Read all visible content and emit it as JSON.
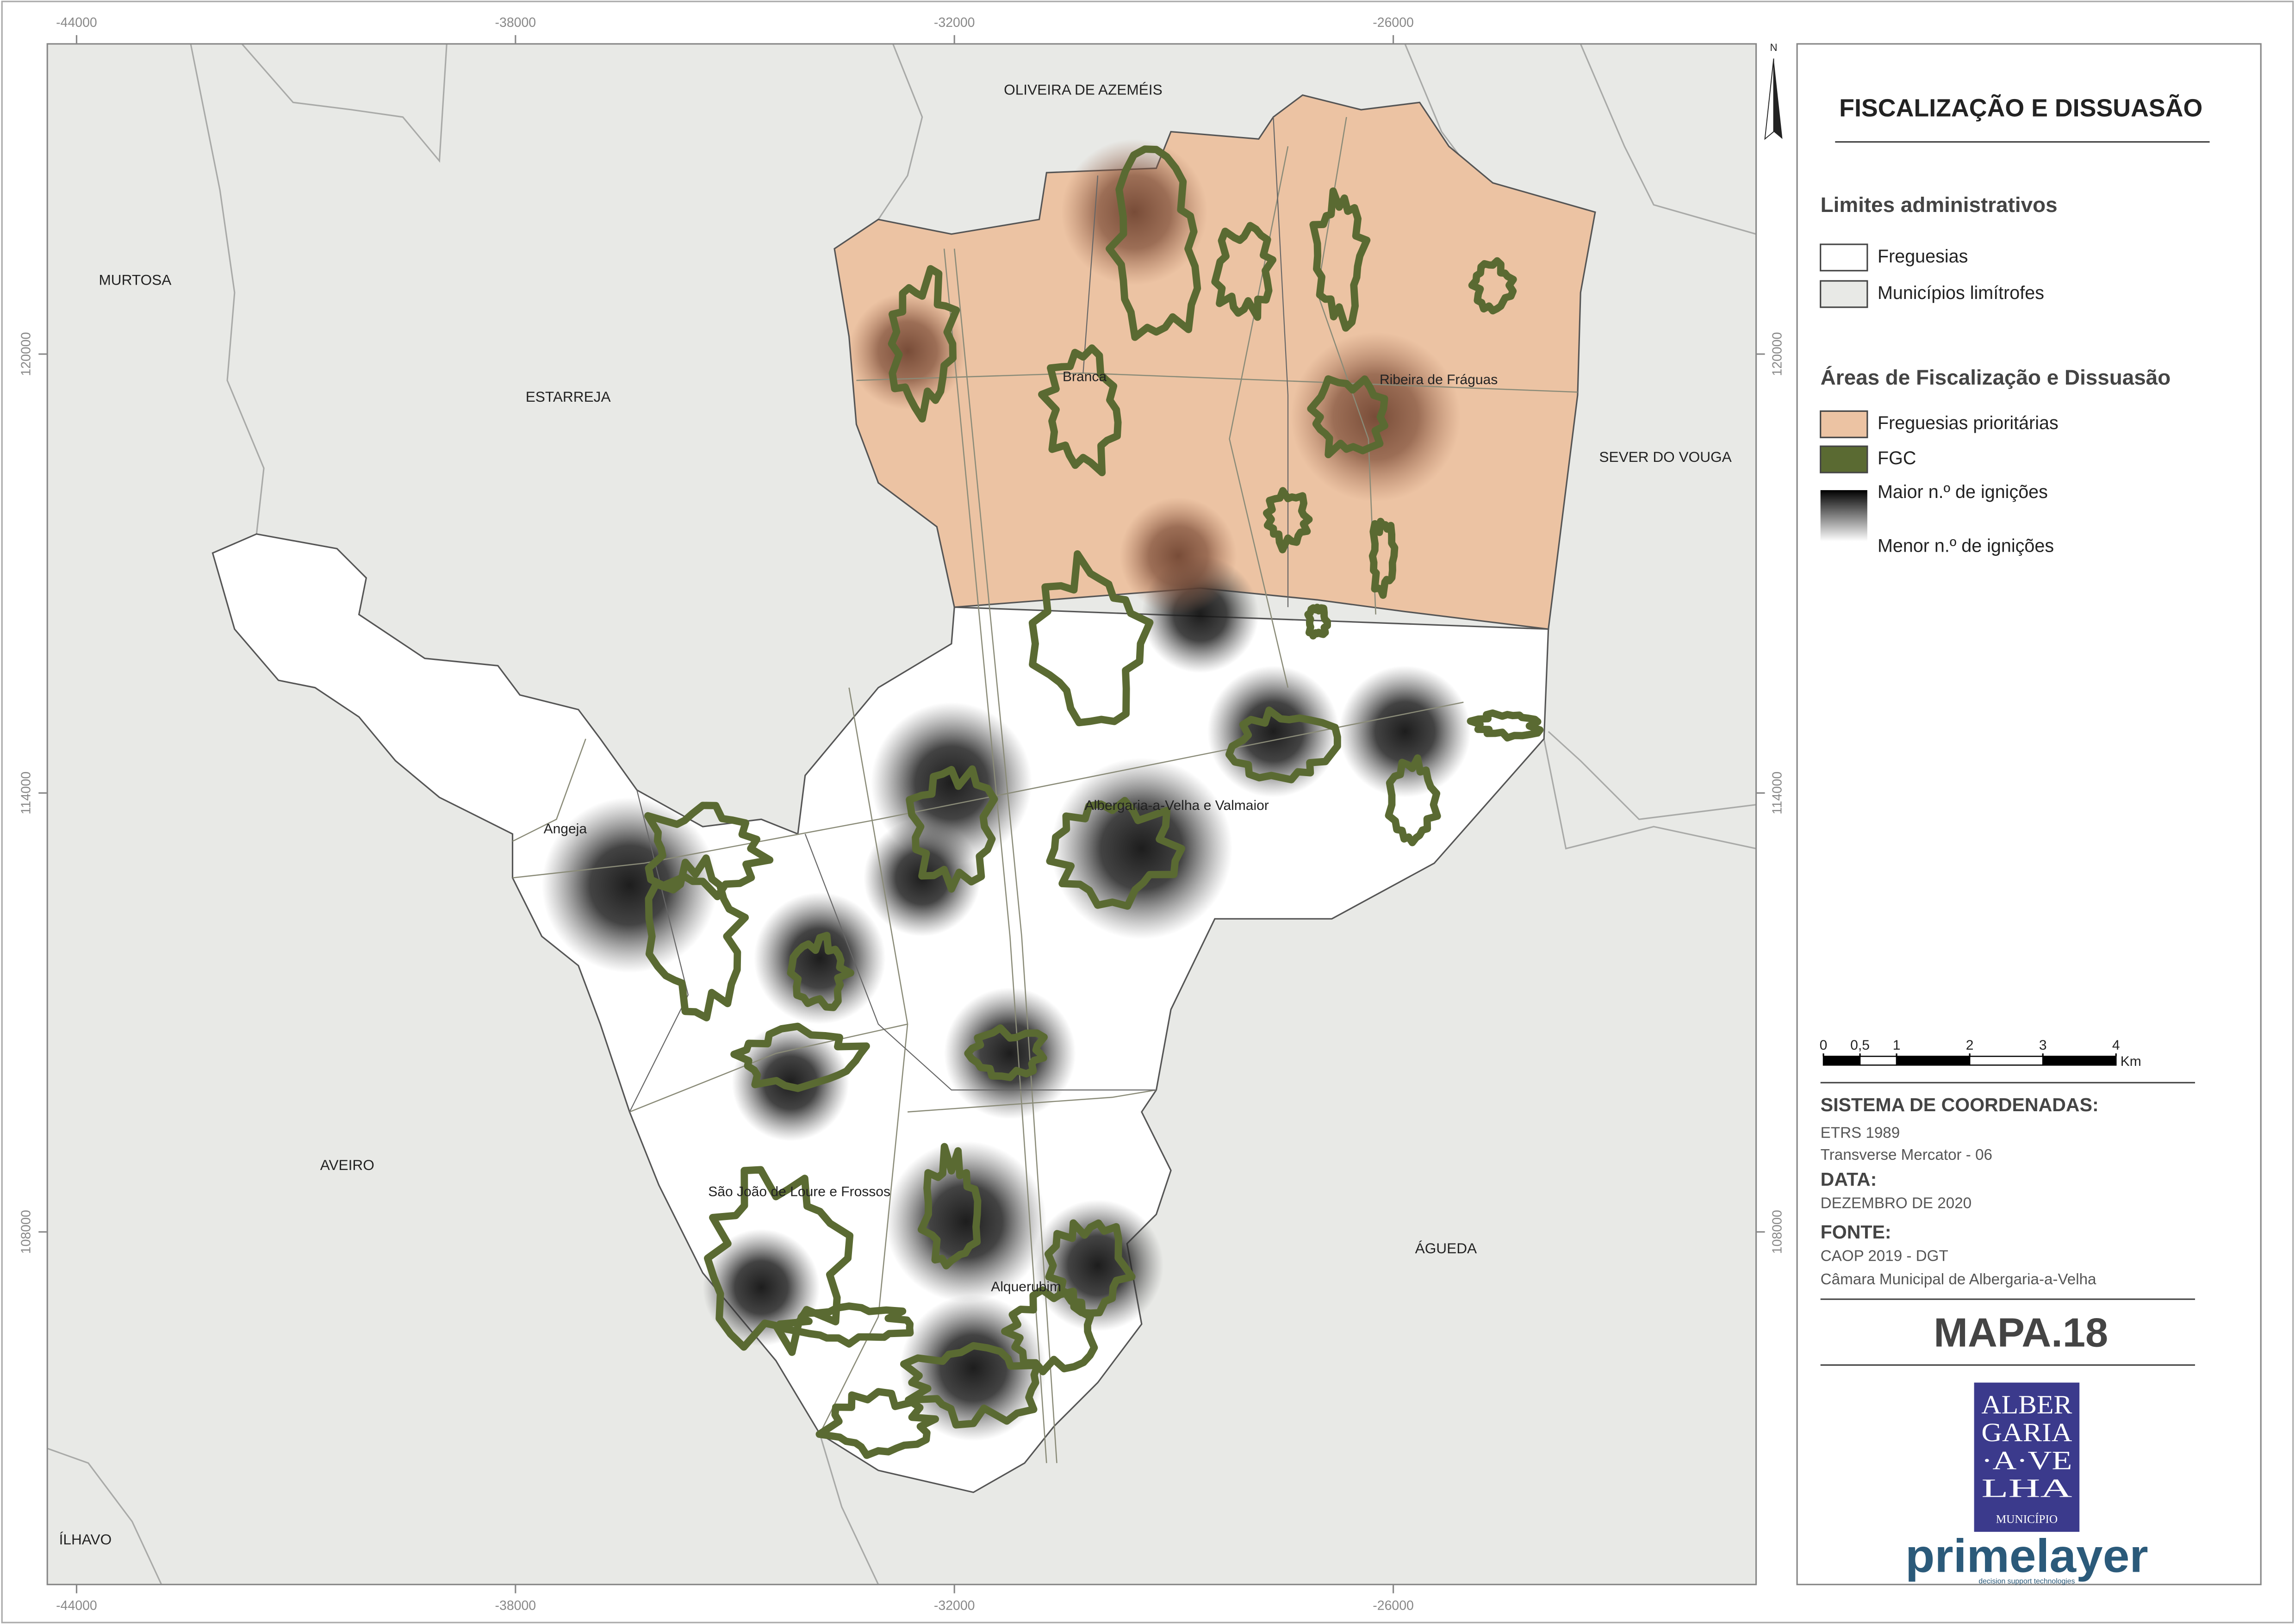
{
  "map": {
    "title": "FISCALIZAÇÃO E DISSUASÃO",
    "xlim": [
      -44400,
      -21040
    ],
    "ylim": [
      103180,
      124240
    ],
    "xticks": [
      -44000,
      -38000,
      -32000,
      -26000
    ],
    "yticks": [
      108000,
      114000,
      120000
    ],
    "north": "N",
    "neighbours": [
      "OLIVEIRA DE AZEMÉIS",
      "MURTOSA",
      "ESTARREJA",
      "SEVER DO VOUGA",
      "AVEIRO",
      "ÁGUEDA",
      "ÍLHAVO"
    ],
    "parishes": [
      "Branca",
      "Ribeira de Fráguas",
      "Angeja",
      "Albergaria-a-Velha e Valmaior",
      "São João de Loure e Frossos",
      "Alquerubim"
    ],
    "legend": [
      {
        "title": "Limites administrativos",
        "items": [
          "Freguesias",
          "Municípios limítrofes"
        ]
      },
      {
        "title": "Áreas de Fiscalização e Dissuasão",
        "items": [
          "Freguesias prioritárias",
          "FGC",
          "Maior n.º de ignições",
          "Menor n.º de ignições"
        ]
      }
    ],
    "scale": {
      "ticks": [
        0,
        {
          "value": 0.5,
          "label": "0,5"
        },
        1,
        2,
        3,
        4
      ],
      "unit": "Km"
    },
    "info": [
      {
        "heading": "SISTEMA DE COORDENADAS:",
        "lines": [
          "ETRS 1989",
          "Transverse Mercator - 06"
        ]
      },
      {
        "heading": "DATA:",
        "lines": [
          "DEZEMBRO DE 2020"
        ]
      },
      {
        "heading": "FONTE:",
        "lines": [
          "CAOP 2019 - DGT",
          "Câmara Municipal de Albergaria-a-Velha"
        ]
      }
    ],
    "map_id": "MAPA.18",
    "logo": {
      "lines": [
        "ALBER",
        "GARIA",
        "·A·VE",
        "LHA"
      ],
      "caption": "MUNICÍPIO"
    },
    "brand": {
      "name": "primelayer",
      "tagline": "decision support technologies"
    }
  }
}
